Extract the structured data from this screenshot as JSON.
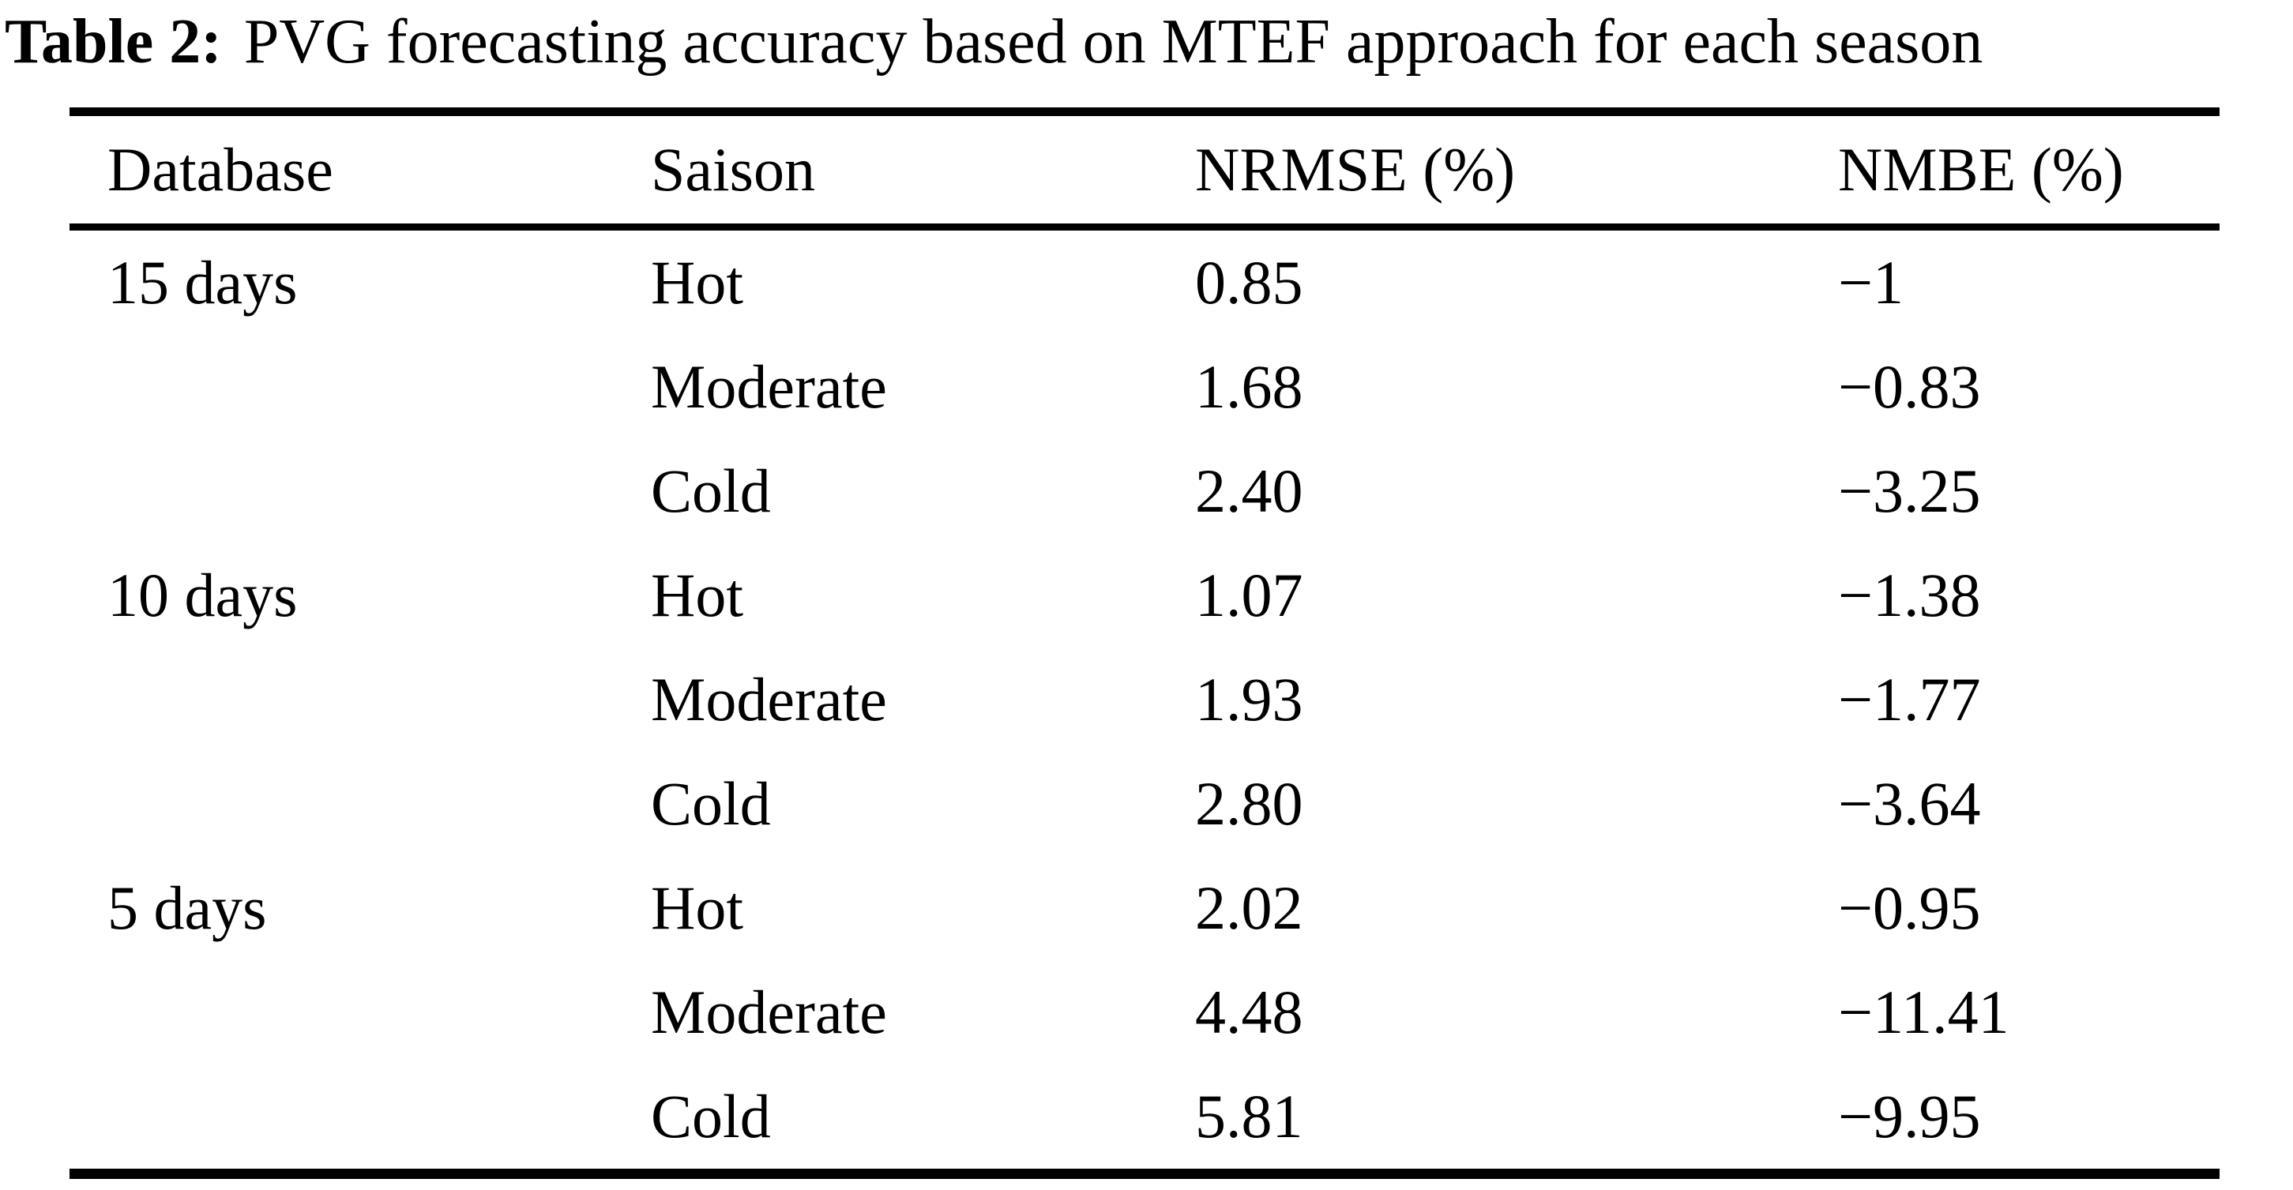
{
  "title": {
    "label": "Table 2:",
    "text": "PVG forecasting accuracy based on MTEF approach for each season"
  },
  "table": {
    "columns": [
      "Database",
      "Saison",
      "NRMSE (%)",
      "NMBE (%)"
    ],
    "rows": [
      {
        "database": "15 days",
        "saison": "Hot",
        "nrmse": "0.85",
        "nmbe": "−1"
      },
      {
        "database": "",
        "saison": "Moderate",
        "nrmse": "1.68",
        "nmbe": "−0.83"
      },
      {
        "database": "",
        "saison": "Cold",
        "nrmse": "2.40",
        "nmbe": "−3.25"
      },
      {
        "database": "10 days",
        "saison": "Hot",
        "nrmse": "1.07",
        "nmbe": "−1.38"
      },
      {
        "database": "",
        "saison": "Moderate",
        "nrmse": "1.93",
        "nmbe": "−1.77"
      },
      {
        "database": "",
        "saison": "Cold",
        "nrmse": "2.80",
        "nmbe": "−3.64"
      },
      {
        "database": "5 days",
        "saison": "Hot",
        "nrmse": "2.02",
        "nmbe": "−0.95"
      },
      {
        "database": "",
        "saison": "Moderate",
        "nrmse": "4.48",
        "nmbe": "−11.41"
      },
      {
        "database": "",
        "saison": "Cold",
        "nrmse": "5.81",
        "nmbe": "−9.95"
      }
    ]
  },
  "colors": {
    "text": "#000000",
    "background": "#ffffff",
    "rule": "#000000"
  }
}
